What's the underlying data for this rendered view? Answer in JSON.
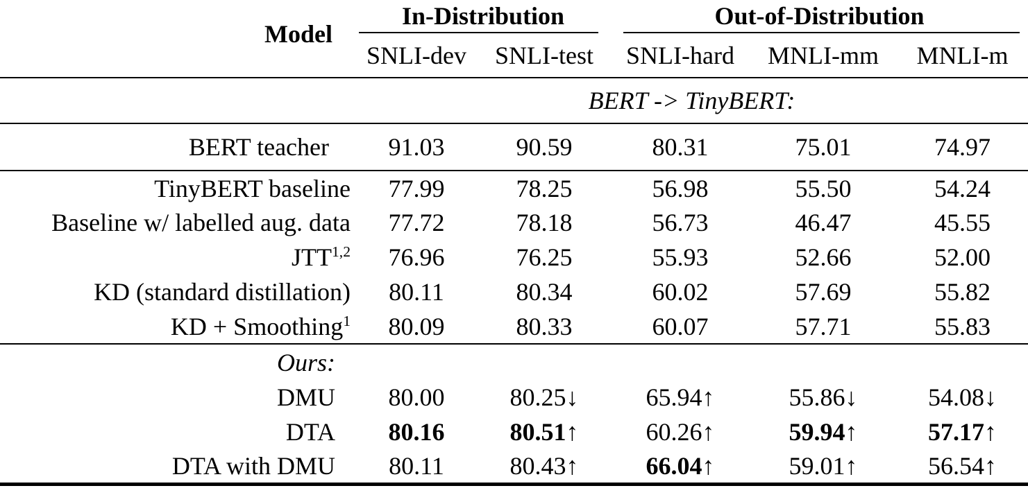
{
  "page": {
    "background": "#ffffff",
    "text_color": "#000000"
  },
  "table": {
    "header": {
      "model_column_label": "Model",
      "groups": [
        {
          "label": "In-Distribution",
          "subcolumns": [
            "SNLI-dev",
            "SNLI-test"
          ]
        },
        {
          "label": "Out-of-Distribution",
          "subcolumns": [
            "SNLI-hard",
            "MNLI-mm",
            "MNLI-m"
          ]
        }
      ]
    },
    "section_label": "BERT -> TinyBERT:",
    "teacher_row": {
      "model": {
        "name": "BERT teacher"
      },
      "cells": [
        {
          "v": "91.03"
        },
        {
          "v": "90.59"
        },
        {
          "v": "80.31"
        },
        {
          "v": "75.01"
        },
        {
          "v": "74.97"
        }
      ]
    },
    "baseline_rows": [
      {
        "model": {
          "name": "TinyBERT baseline"
        },
        "cells": [
          {
            "v": "77.99"
          },
          {
            "v": "78.25"
          },
          {
            "v": "56.98"
          },
          {
            "v": "55.50"
          },
          {
            "v": "54.24"
          }
        ]
      },
      {
        "model": {
          "name": "Baseline w/ labelled aug. data"
        },
        "cells": [
          {
            "v": "77.72"
          },
          {
            "v": "78.18"
          },
          {
            "v": "56.73"
          },
          {
            "v": "46.47"
          },
          {
            "v": "45.55"
          }
        ]
      },
      {
        "model": {
          "name": "JTT",
          "sup": "1,2"
        },
        "cells": [
          {
            "v": "76.96"
          },
          {
            "v": "76.25"
          },
          {
            "v": "55.93"
          },
          {
            "v": "52.66"
          },
          {
            "v": "52.00"
          }
        ]
      },
      {
        "model": {
          "name": "KD (standard distillation)"
        },
        "cells": [
          {
            "v": "80.11"
          },
          {
            "v": "80.34"
          },
          {
            "v": "60.02"
          },
          {
            "v": "57.69"
          },
          {
            "v": "55.82"
          }
        ]
      },
      {
        "model": {
          "name": "KD + Smoothing",
          "sup": "1"
        },
        "cells": [
          {
            "v": "80.09"
          },
          {
            "v": "80.33"
          },
          {
            "v": "60.07"
          },
          {
            "v": "57.71"
          },
          {
            "v": "55.83"
          }
        ]
      }
    ],
    "ours_label": "Ours:",
    "ours_rows": [
      {
        "model": {
          "name": "DMU"
        },
        "cells": [
          {
            "v": "80.00"
          },
          {
            "v": "80.25",
            "a": "↓"
          },
          {
            "v": "65.94",
            "a": "↑"
          },
          {
            "v": "55.86",
            "a": "↓"
          },
          {
            "v": "54.08",
            "a": "↓"
          }
        ]
      },
      {
        "model": {
          "name": "DTA"
        },
        "cells": [
          {
            "v": "80.16",
            "bold": true
          },
          {
            "v": "80.51",
            "a": "↑",
            "bold": true
          },
          {
            "v": "60.26",
            "a": "↑"
          },
          {
            "v": "59.94",
            "a": "↑",
            "bold": true
          },
          {
            "v": "57.17",
            "a": "↑",
            "bold": true
          }
        ]
      },
      {
        "model": {
          "name": "DTA with DMU"
        },
        "cells": [
          {
            "v": "80.11"
          },
          {
            "v": "80.43",
            "a": "↑"
          },
          {
            "v": "66.04",
            "a": "↑",
            "bold": true
          },
          {
            "v": "59.01",
            "a": "↑"
          },
          {
            "v": "56.54",
            "a": "↑"
          }
        ]
      }
    ]
  }
}
